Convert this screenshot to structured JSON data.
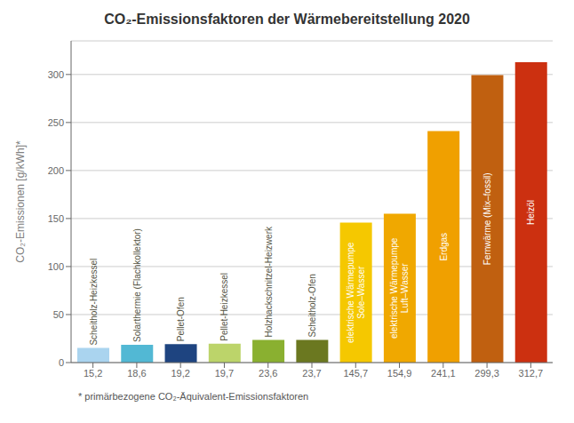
{
  "chart_data": {
    "type": "bar",
    "title": "CO₂-Emissionsfaktoren der Wärmebereitstellung 2020",
    "ylabel": "CO₂-Emissionen [g/kWh]*",
    "footnote": "* primärbezogene CO₂-Äquivalent-Emissionsfaktoren",
    "categories": [
      "Scheitholz-Heizkessel",
      "Solarthermie (Flachkollektor)",
      "Pellet-Ofen",
      "Pellet-Heizkessel",
      "Holzhackschnitzel-Heizwerk",
      "Scheitholz-Ofen",
      "elektrische Wärmepumpe",
      "elektrische Wärmepumpe",
      "Erdgas",
      "Fernwärme (Mix–fossil)",
      "Heizöl"
    ],
    "sublabels": [
      null,
      null,
      null,
      null,
      null,
      null,
      "Sole–Wasser",
      "Luft–Wasser",
      null,
      null,
      null
    ],
    "values": [
      15.2,
      18.6,
      19.2,
      19.7,
      23.6,
      23.7,
      145.7,
      154.9,
      241.1,
      299.3,
      312.7
    ],
    "value_labels": [
      "15,2",
      "18,6",
      "19,2",
      "19,7",
      "23,6",
      "23,7",
      "145,7",
      "154,9",
      "241,1",
      "299,3",
      "312,7"
    ],
    "data_labels": true,
    "colors": [
      "#aad4ef",
      "#52b8d4",
      "#1e4480",
      "#bcd46a",
      "#8ab030",
      "#6b7820",
      "#f5c800",
      "#f0a800",
      "#f0a000",
      "#c06010",
      "#cc3010"
    ],
    "ylim": [
      0,
      335
    ],
    "yticks": [
      0,
      50,
      100,
      150,
      200,
      250,
      300
    ],
    "grid": true
  }
}
